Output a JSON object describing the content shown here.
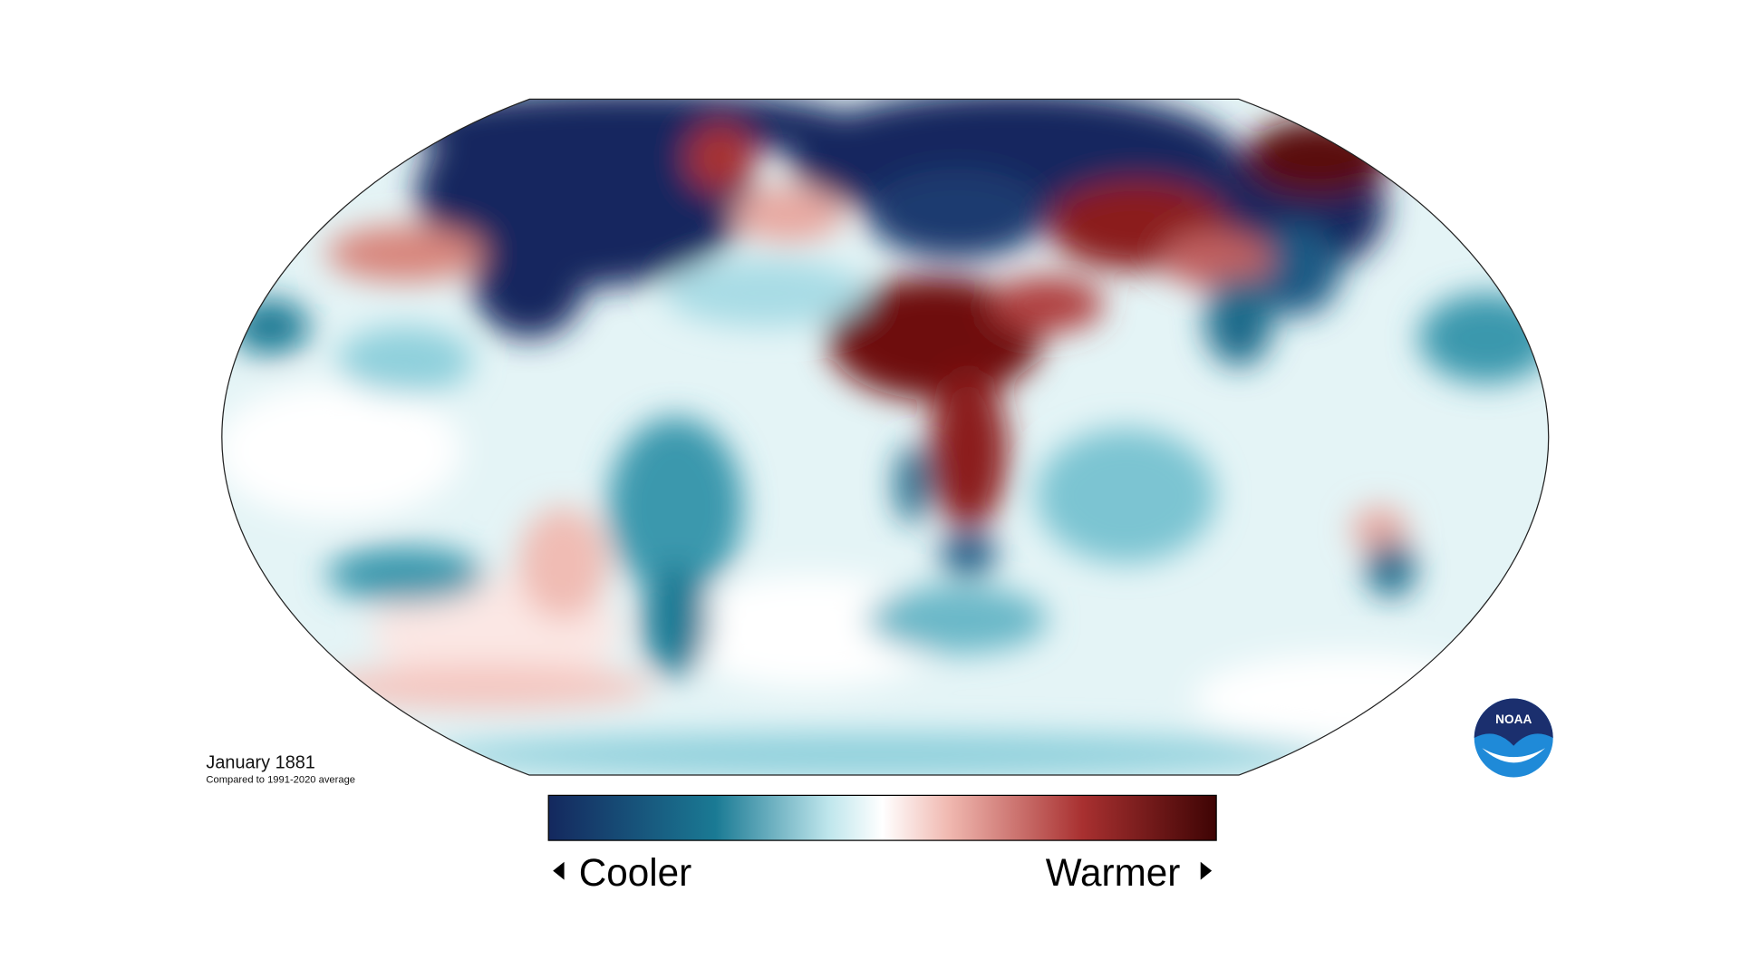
{
  "title": "January 1881",
  "subtitle": "Compared to 1991-2020 average",
  "legend": {
    "low": "Cooler",
    "high": "Warmer"
  },
  "logo": "NOAA"
}
